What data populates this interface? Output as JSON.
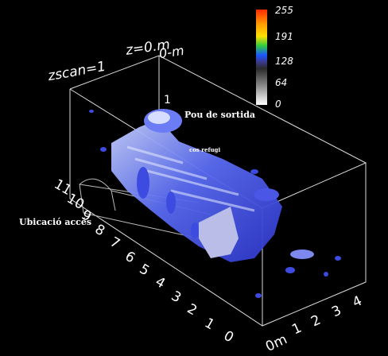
{
  "header": {
    "zscan": "zscan=1",
    "z": "z=0.m",
    "zero": "0-m"
  },
  "colorbar": {
    "ticks": [
      "255",
      "191",
      "128",
      "64",
      "0"
    ],
    "colors": [
      "#ff2a00",
      "#ff9a00",
      "#ffe100",
      "#2ecc40",
      "#1a55ff",
      "#3a3a8a",
      "#555555",
      "#888888",
      "#c0c0c0",
      "#ffffff"
    ]
  },
  "annotations": {
    "pou": "Pou de sortida",
    "refugi": "cos refugi",
    "acces": "Ubicació accés",
    "one": "1"
  },
  "axis_left": [
    "11",
    "10",
    "9",
    "8",
    "7",
    "6",
    "5",
    "4",
    "3",
    "2",
    "1",
    "0"
  ],
  "axis_right": [
    "0m",
    "1",
    "2",
    "3",
    "4"
  ]
}
